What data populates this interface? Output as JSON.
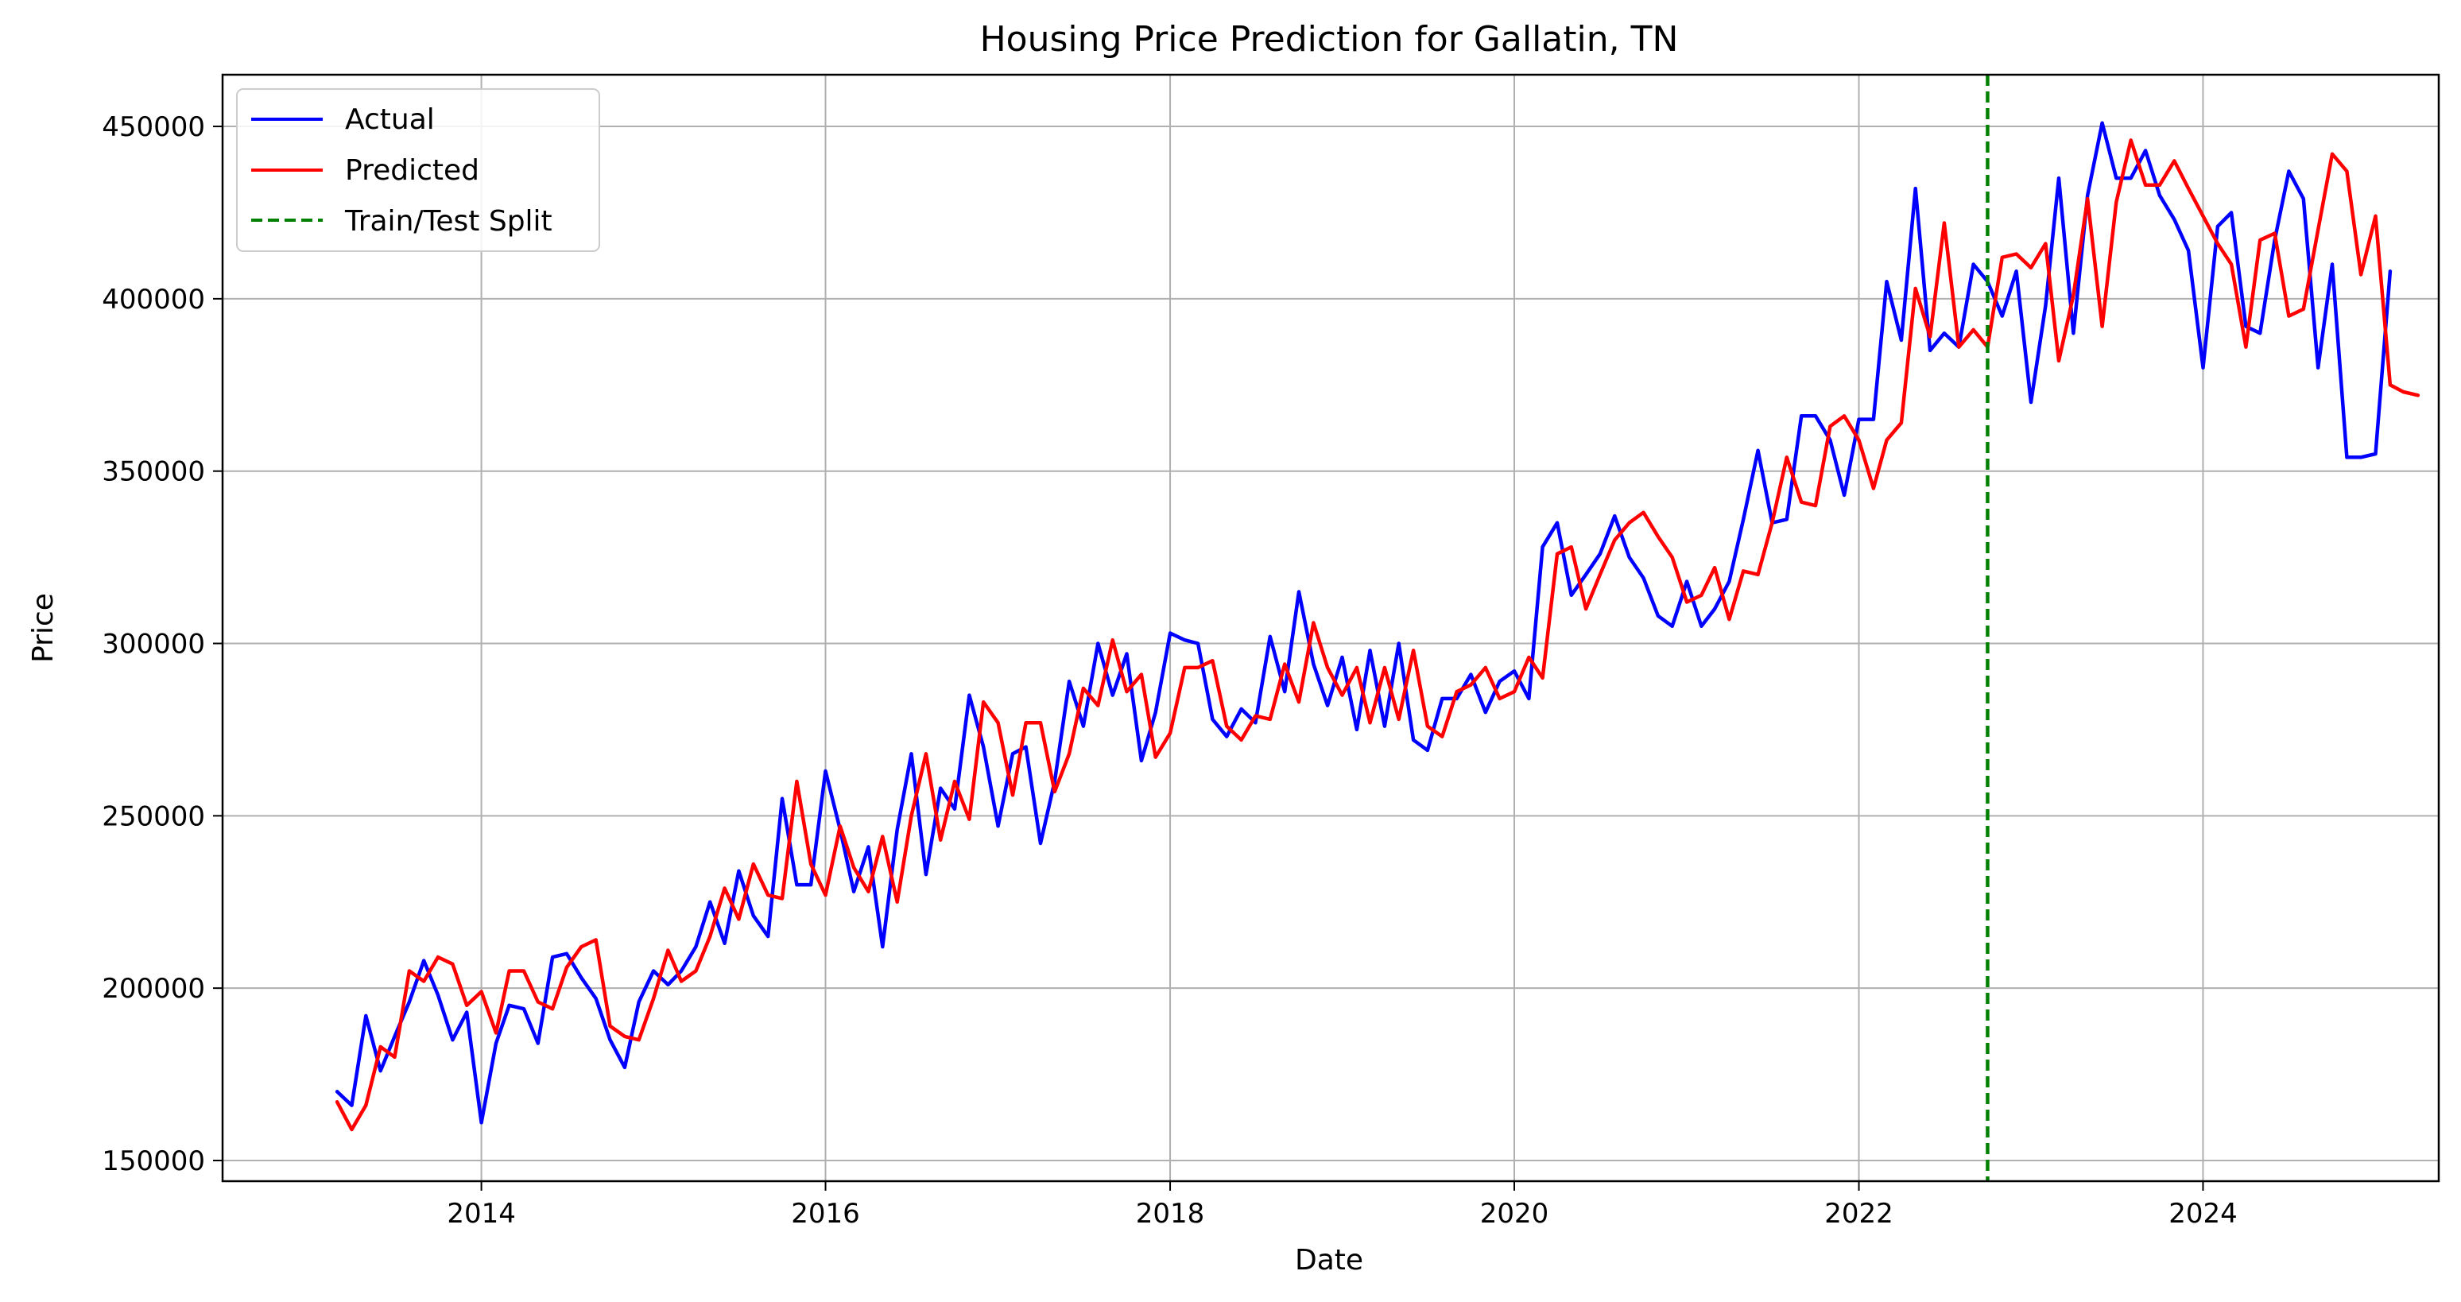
{
  "chart_data": {
    "type": "line",
    "title": "Housing Price Prediction for Gallatin, TN",
    "xlabel": "Date",
    "ylabel": "Price",
    "xlim": [
      "2012-07-01",
      "2025-05-15"
    ],
    "ylim": [
      144000,
      465000
    ],
    "x_ticks": [
      {
        "date": "2014-01-01",
        "label": "2014"
      },
      {
        "date": "2016-01-01",
        "label": "2016"
      },
      {
        "date": "2018-01-01",
        "label": "2018"
      },
      {
        "date": "2020-01-01",
        "label": "2020"
      },
      {
        "date": "2022-01-01",
        "label": "2022"
      },
      {
        "date": "2024-01-01",
        "label": "2024"
      }
    ],
    "y_ticks": [
      {
        "value": 150000,
        "label": "150000"
      },
      {
        "value": 200000,
        "label": "200000"
      },
      {
        "value": 250000,
        "label": "250000"
      },
      {
        "value": 300000,
        "label": "300000"
      },
      {
        "value": 350000,
        "label": "350000"
      },
      {
        "value": 400000,
        "label": "400000"
      },
      {
        "value": 450000,
        "label": "450000"
      }
    ],
    "grid": true,
    "legend_position": "upper-left",
    "start_month": "2013-03",
    "series": [
      {
        "name": "Actual",
        "color": "#0000ff",
        "values": [
          170000,
          166000,
          192000,
          176000,
          186000,
          196000,
          208000,
          198000,
          185000,
          193000,
          161000,
          184000,
          195000,
          194000,
          184000,
          209000,
          210000,
          203000,
          197000,
          185000,
          177000,
          196000,
          205000,
          201000,
          205000,
          212000,
          225000,
          213000,
          234000,
          221000,
          215000,
          255000,
          230000,
          230000,
          263000,
          246000,
          228000,
          241000,
          212000,
          246000,
          268000,
          233000,
          258000,
          252000,
          285000,
          270000,
          247000,
          268000,
          270000,
          242000,
          260000,
          289000,
          276000,
          300000,
          285000,
          297000,
          266000,
          280000,
          303000,
          301000,
          300000,
          278000,
          273000,
          281000,
          277000,
          302000,
          286000,
          315000,
          294000,
          282000,
          296000,
          275000,
          298000,
          276000,
          300000,
          272000,
          269000,
          284000,
          284000,
          291000,
          280000,
          289000,
          292000,
          284000,
          328000,
          335000,
          314000,
          320000,
          326000,
          337000,
          325000,
          319000,
          308000,
          305000,
          318000,
          305000,
          310000,
          318000,
          336000,
          356000,
          335000,
          336000,
          366000,
          366000,
          359000,
          343000,
          365000,
          365000,
          405000,
          388000,
          432000,
          385000,
          390000,
          386000,
          410000,
          405000,
          395000,
          408000,
          370000,
          398000,
          435000,
          390000,
          430000,
          451000,
          435000,
          435000,
          443000,
          430000,
          423000,
          414000,
          380000,
          421000,
          425000,
          392000,
          390000,
          417000,
          437000,
          429000,
          380000,
          410000,
          354000,
          354000,
          355000,
          408000
        ]
      },
      {
        "name": "Predicted",
        "color": "#ff0000",
        "values": [
          167000,
          159000,
          166000,
          183000,
          180000,
          205000,
          202000,
          209000,
          207000,
          195000,
          199000,
          187000,
          205000,
          205000,
          196000,
          194000,
          206000,
          212000,
          214000,
          189000,
          186000,
          185000,
          197000,
          211000,
          202000,
          205000,
          215000,
          229000,
          220000,
          236000,
          227000,
          226000,
          260000,
          236000,
          227000,
          247000,
          235000,
          228000,
          244000,
          225000,
          250000,
          268000,
          243000,
          260000,
          249000,
          283000,
          277000,
          256000,
          277000,
          277000,
          257000,
          268000,
          287000,
          282000,
          301000,
          286000,
          291000,
          267000,
          274000,
          293000,
          293000,
          295000,
          276000,
          272000,
          279000,
          278000,
          294000,
          283000,
          306000,
          293000,
          285000,
          293000,
          277000,
          293000,
          278000,
          298000,
          276000,
          273000,
          286000,
          288000,
          293000,
          284000,
          286000,
          296000,
          290000,
          326000,
          328000,
          310000,
          320000,
          330000,
          335000,
          338000,
          331000,
          325000,
          312000,
          314000,
          322000,
          307000,
          321000,
          320000,
          335000,
          354000,
          341000,
          340000,
          363000,
          366000,
          359000,
          345000,
          359000,
          364000,
          403000,
          389000,
          422000,
          386000,
          391000,
          386000,
          412000,
          413000,
          409000,
          416000,
          382000,
          401000,
          429000,
          392000,
          428000,
          446000,
          433000,
          433000,
          440000,
          432000,
          424000,
          416000,
          410000,
          386000,
          417000,
          419000,
          395000,
          397000,
          420000,
          442000,
          437000,
          407000,
          424000,
          375000,
          373000,
          372000
        ]
      }
    ],
    "split": {
      "name": "Train/Test Split",
      "date": "2022-10-01",
      "color": "#008000"
    }
  }
}
